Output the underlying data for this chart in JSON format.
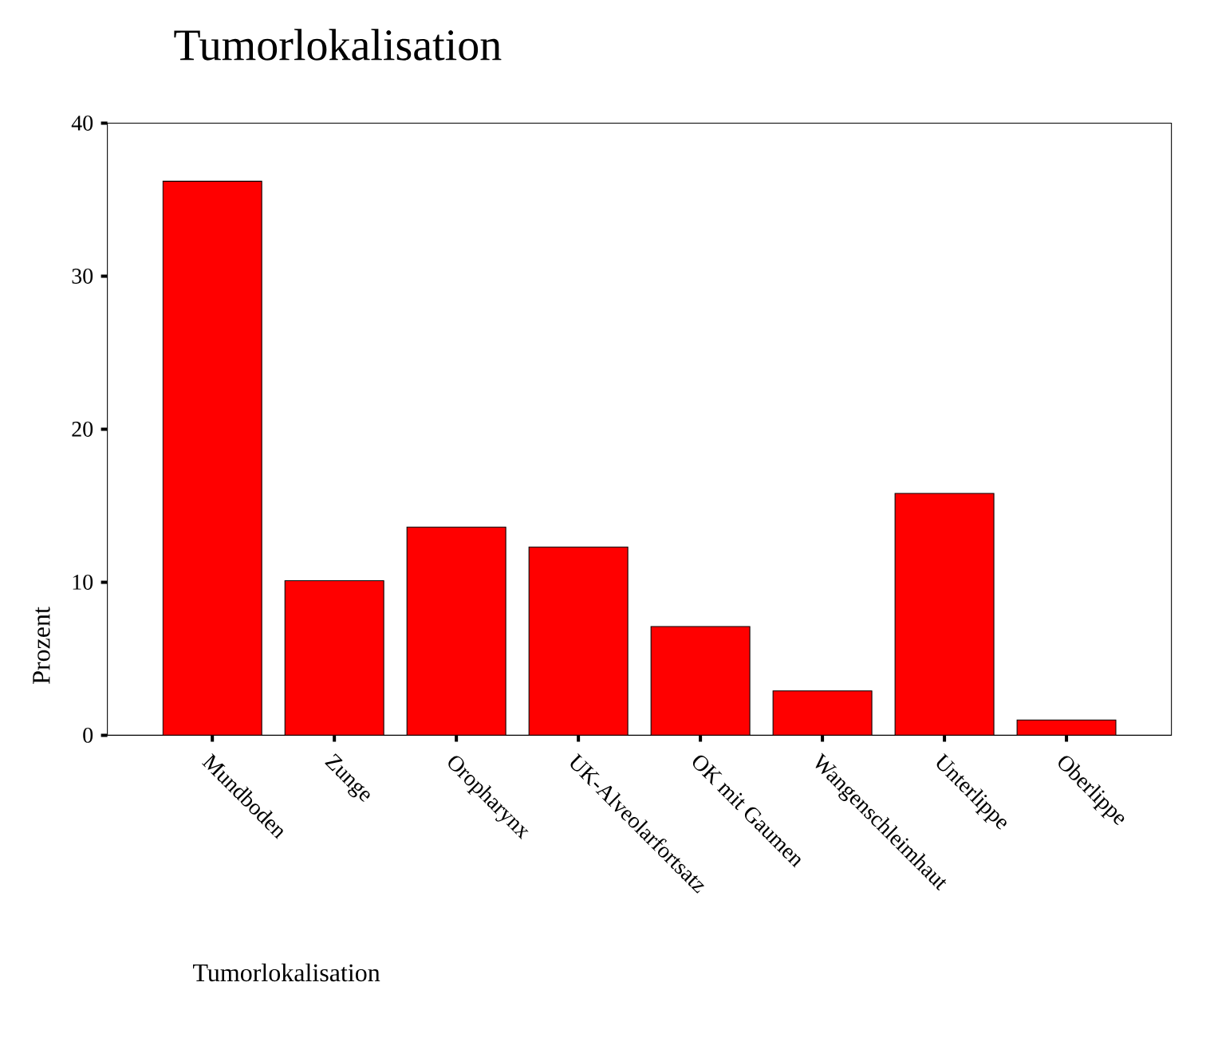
{
  "chart_data": {
    "type": "bar",
    "title": "Tumorlokalisation",
    "xlabel": "Tumorlokalisation",
    "ylabel": "Prozent",
    "categories": [
      "Mundboden",
      "Zunge",
      "Oropharynx",
      "UK-Alveolarfortsatz",
      "OK mit Gaumen",
      "Wangenschleimhaut",
      "Unterlippe",
      "Oberlippe"
    ],
    "values": [
      36.2,
      10.1,
      13.6,
      12.3,
      7.1,
      2.9,
      15.8,
      1.0
    ],
    "color": "#ff0000",
    "ylim": [
      0,
      40
    ],
    "yticks": [
      0,
      10,
      20,
      30,
      40
    ],
    "grid": false
  }
}
